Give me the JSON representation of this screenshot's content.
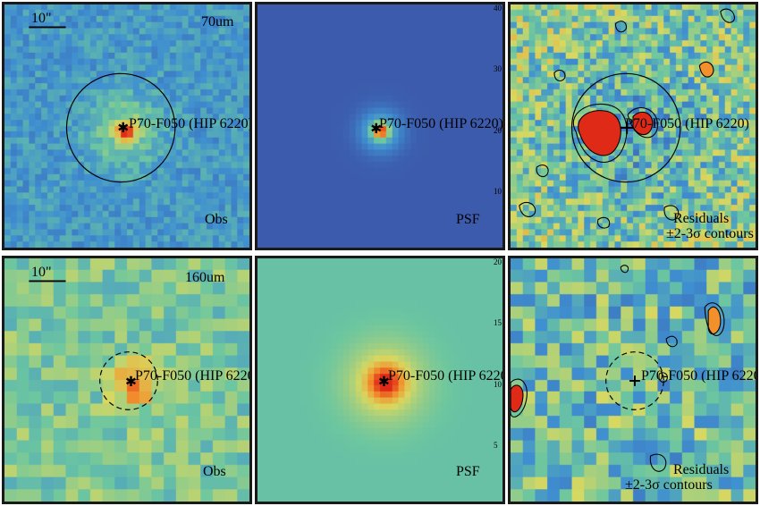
{
  "scale_bar_label": "10\"",
  "source_label": "P70-F050 (HIP 6220)",
  "rows": [
    {
      "band": "70um",
      "panels": [
        {
          "kind": "obs",
          "label": "Obs",
          "band_label": "70um",
          "aperture": "solid"
        },
        {
          "kind": "psf",
          "label": "PSF"
        },
        {
          "kind": "res",
          "label_line1": "Residuals",
          "label_line2": "±2-3σ contours",
          "aperture": "solid"
        }
      ],
      "right_axis_ticks": [
        "40",
        "30",
        "20",
        "10"
      ]
    },
    {
      "band": "160um",
      "panels": [
        {
          "kind": "obs",
          "label": "Obs",
          "band_label": "160um",
          "aperture": "dashed"
        },
        {
          "kind": "psf",
          "label": "PSF"
        },
        {
          "kind": "res",
          "label_line1": "Residuals",
          "label_line2": "±2-3σ contours",
          "aperture": "dashed"
        }
      ],
      "right_axis_ticks": [
        "20",
        "15",
        "10",
        "5"
      ]
    }
  ],
  "colors": {
    "low": "#3b4aa0",
    "mid_low": "#3f8fd0",
    "mid": "#6cc6a0",
    "mid_high": "#d8d860",
    "high": "#f2902c",
    "peak": "#e02a18",
    "frame": "#1a1a1a"
  }
}
